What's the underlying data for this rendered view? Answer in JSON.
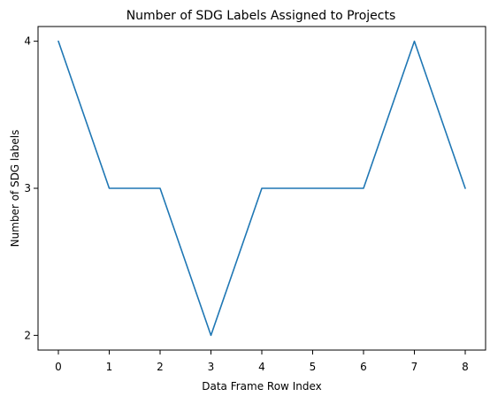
{
  "chart_data": {
    "type": "line",
    "title": "Number of SDG Labels Assigned to Projects",
    "xlabel": "Data Frame Row Index",
    "ylabel": "Number of SDG labels",
    "x": [
      0,
      1,
      2,
      3,
      4,
      5,
      6,
      7,
      8
    ],
    "series": [
      {
        "values": [
          4,
          3,
          3,
          2,
          3,
          3,
          3,
          4,
          3
        ],
        "color": "#1f77b4"
      }
    ],
    "xticks": [
      0,
      1,
      2,
      3,
      4,
      5,
      6,
      7,
      8
    ],
    "yticks": [
      2,
      3,
      4
    ],
    "xlim": [
      -0.4,
      8.4
    ],
    "ylim": [
      1.9,
      4.1
    ],
    "grid": false,
    "legend": "none"
  }
}
